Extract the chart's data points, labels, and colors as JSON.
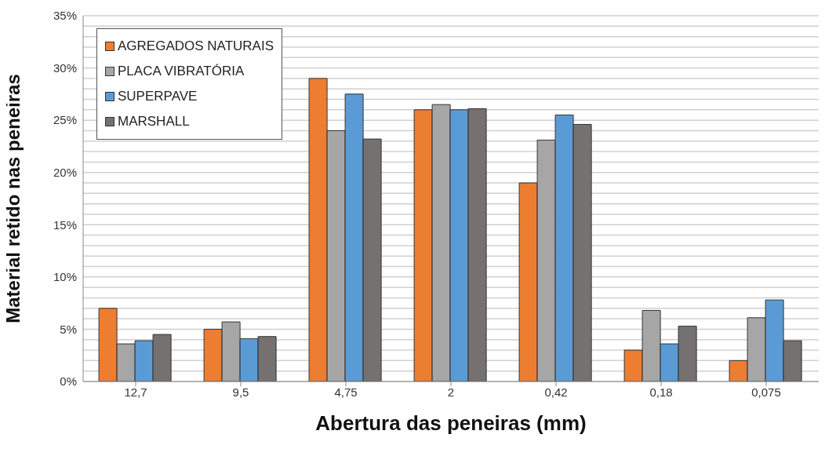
{
  "chart_data": {
    "type": "bar",
    "xlabel": "Abertura das peneiras (mm)",
    "ylabel": "Material retido nas peneiras",
    "categories": [
      "12,7",
      "9,5",
      "4,75",
      "2",
      "0,42",
      "0,18",
      "0,075"
    ],
    "series": [
      {
        "name": "AGREGADOS NATURAIS",
        "color": "#ed7d31",
        "values": [
          7.0,
          5.0,
          29.0,
          26.0,
          19.0,
          3.0,
          2.0
        ]
      },
      {
        "name": "PLACA VIBRATÓRIA",
        "color": "#a6a6a6",
        "values": [
          3.6,
          5.7,
          24.0,
          26.5,
          23.1,
          6.8,
          6.1
        ]
      },
      {
        "name": "SUPERPAVE",
        "color": "#5b9bd5",
        "values": [
          3.9,
          4.1,
          27.5,
          26.0,
          25.5,
          3.6,
          7.8
        ]
      },
      {
        "name": "MARSHALL",
        "color": "#767171",
        "values": [
          4.5,
          4.3,
          23.2,
          26.1,
          24.6,
          5.3,
          3.9
        ]
      }
    ],
    "ylim": [
      0,
      35
    ],
    "yticks": [
      {
        "value": 0,
        "label": "0%"
      },
      {
        "value": 1,
        "label": null
      },
      {
        "value": 2,
        "label": null
      },
      {
        "value": 3,
        "label": null
      },
      {
        "value": 4,
        "label": null
      },
      {
        "value": 5,
        "label": "5%"
      },
      {
        "value": 6,
        "label": null
      },
      {
        "value": 7,
        "label": null
      },
      {
        "value": 8,
        "label": null
      },
      {
        "value": 9,
        "label": null
      },
      {
        "value": 10,
        "label": "10%"
      },
      {
        "value": 11,
        "label": null
      },
      {
        "value": 12,
        "label": null
      },
      {
        "value": 13,
        "label": null
      },
      {
        "value": 14,
        "label": null
      },
      {
        "value": 15,
        "label": "15%"
      },
      {
        "value": 16,
        "label": null
      },
      {
        "value": 17,
        "label": null
      },
      {
        "value": 18,
        "label": null
      },
      {
        "value": 19,
        "label": null
      },
      {
        "value": 20,
        "label": "20%"
      },
      {
        "value": 21,
        "label": null
      },
      {
        "value": 22,
        "label": null
      },
      {
        "value": 23,
        "label": null
      },
      {
        "value": 24,
        "label": null
      },
      {
        "value": 25,
        "label": "25%"
      },
      {
        "value": 26,
        "label": null
      },
      {
        "value": 27,
        "label": null
      },
      {
        "value": 28,
        "label": null
      },
      {
        "value": 29,
        "label": null
      },
      {
        "value": 30,
        "label": "30%"
      },
      {
        "value": 31,
        "label": null
      },
      {
        "value": 32,
        "label": null
      },
      {
        "value": 33,
        "label": null
      },
      {
        "value": 34,
        "label": null
      },
      {
        "value": 35,
        "label": "35%"
      }
    ],
    "grid": "y",
    "legend": "top left"
  }
}
